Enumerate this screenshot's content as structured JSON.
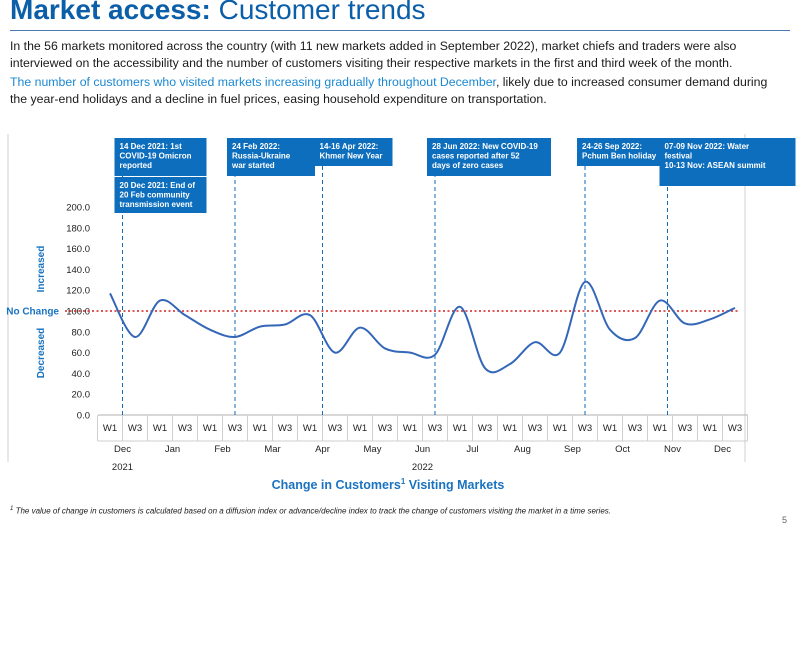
{
  "page": {
    "title_bold": "Market access:",
    "title_rest": " Customer trends",
    "para1": "In the 56 markets monitored across the country (with 11 new markets added in September 2022), market chiefs and traders were also interviewed on the accessibility and the number of customers visiting their respective markets in the first and third week of the month.",
    "para2_highlight": "The number of customers who visited markets increasing gradually throughout December",
    "para2_rest": ", likely due to increased consumer demand during the  year-end holidays and a decline in fuel prices, easing household expenditure on transportation.",
    "footnote_sup": "1",
    "footnote": " The value of change in customers is calculated based on a diffusion index or advance/decline index to track the change of customers visiting the market in a time series.",
    "page_number": "5"
  },
  "colors": {
    "title": "#0b5ea8",
    "highlight": "#1b88d2",
    "line": "#3567b8",
    "annotation_box": "#0d6ebe",
    "reference_line": "#d42020",
    "axis_label": "#1a73c0"
  },
  "chart_data": {
    "type": "line",
    "title": "Change in Customers",
    "title_sup": "1",
    "title_suffix": " Visiting Markets",
    "xlabel": "",
    "ylabel_up": "Increased",
    "ylabel_down": "Decreased",
    "ylim": [
      0,
      200
    ],
    "yticks": [
      "0.0",
      "20.0",
      "40.0",
      "60.0",
      "80.0",
      "100.0",
      "120.0",
      "140.0",
      "160.0",
      "180.0",
      "200.0"
    ],
    "reference": {
      "value": 100,
      "label": "No Change"
    },
    "weeks": [
      "W1",
      "W3",
      "W1",
      "W3",
      "W1",
      "W3",
      "W1",
      "W3",
      "W1",
      "W3",
      "W1",
      "W3",
      "W1",
      "W3",
      "W1",
      "W3",
      "W1",
      "W3",
      "W1",
      "W3",
      "W1",
      "W3",
      "W1",
      "W3",
      "W1",
      "W3"
    ],
    "months": [
      "Dec",
      "Jan",
      "Feb",
      "Mar",
      "Apr",
      "May",
      "Jun",
      "Jul",
      "Aug",
      "Sep",
      "Oct",
      "Nov",
      "Dec"
    ],
    "years": [
      {
        "label": "2021",
        "month_index": 0
      },
      {
        "label": "2022",
        "month_index": 6
      }
    ],
    "series": [
      {
        "name": "Change in customers",
        "values": [
          117,
          75,
          110,
          96,
          82,
          75,
          85,
          87,
          96,
          60,
          84,
          64,
          60,
          58,
          104,
          45,
          49,
          70,
          60,
          128,
          82,
          74,
          110,
          88,
          92,
          103
        ]
      }
    ],
    "annotations": [
      {
        "position": 0.5,
        "lines": [
          "14 Dec 2021: 1st COVID-19 Omicron reported",
          "20 Dec 2021: End of 20 Feb community transmission event"
        ]
      },
      {
        "position": 5,
        "lines": [
          "24 Feb 2022: Russia-Ukraine war started"
        ]
      },
      {
        "position": 8.5,
        "lines": [
          "14-16 Apr 2022: Khmer New Year"
        ]
      },
      {
        "position": 13,
        "lines": [
          "28 Jun 2022: New COVID-19 cases reported after 52 days of zero cases"
        ]
      },
      {
        "position": 19,
        "lines": [
          "24-26 Sep 2022: Pchum Ben holiday"
        ]
      },
      {
        "position": 22.3,
        "lines": [
          "07-09 Nov 2022: Water festival",
          "10-13 Nov: ASEAN summit"
        ]
      }
    ]
  }
}
